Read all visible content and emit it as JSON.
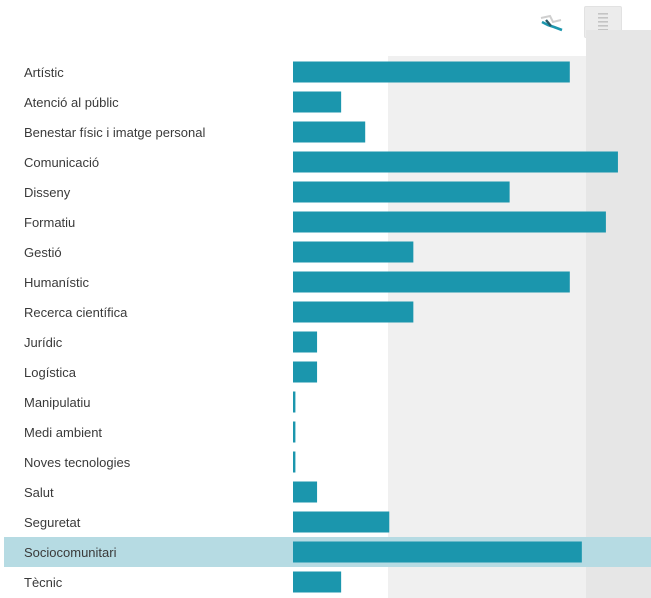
{
  "toolbar": {
    "chart_icon": "line-chart-icon",
    "table_icon": "table-list-icon"
  },
  "colors": {
    "bar": "#1b96ad",
    "highlight_row": "#b6dbe3",
    "zone_light": "#f0f0f0",
    "zone_dark": "#e6e6e6",
    "label_text": "#3a3a3a"
  },
  "chart_data": {
    "type": "bar",
    "orientation": "horizontal",
    "categories": [
      "Artístic",
      "Atenció al públic",
      "Benestar físic i imatge personal",
      "Comunicació",
      "Disseny",
      "Formatiu",
      "Gestió",
      "Humanístic",
      "Recerca científica",
      "Jurídic",
      "Logística",
      "Manipulatiu",
      "Medi ambient",
      "Noves tecnologies",
      "Salut",
      "Seguretat",
      "Sociocomunitari",
      "Tècnic"
    ],
    "values": [
      23,
      4,
      6,
      27,
      18,
      26,
      10,
      23,
      10,
      2,
      2,
      0.2,
      0.2,
      0.2,
      2,
      8,
      24,
      4
    ],
    "highlighted_category": "Sociocomunitari",
    "title": "",
    "xlabel": "",
    "ylabel": "",
    "xlim": [
      0,
      29
    ],
    "grid": false,
    "legend": "none"
  }
}
